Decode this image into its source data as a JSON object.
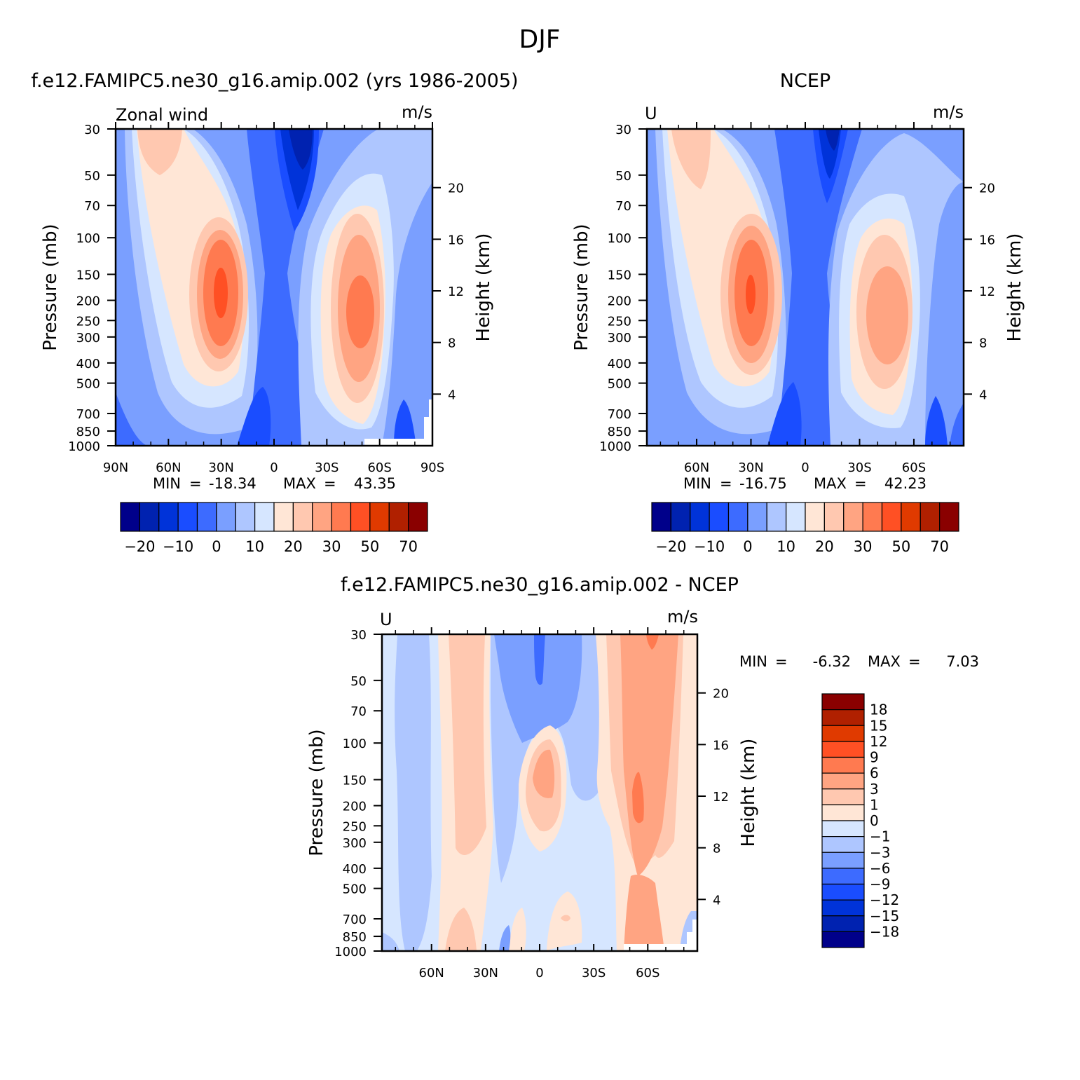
{
  "figure": {
    "title": "DJF"
  },
  "chart_data": [
    {
      "type": "heatmap",
      "panel": "model",
      "title": "f.e12.FAMIPC5.ne30_g16.amip.002 (yrs 1986-2005)",
      "left_label": "Zonal wind",
      "units": "m/s",
      "ylabel": "Pressure (mb)",
      "y2label": "Height (km)",
      "x_ticks": [
        "90N",
        "60N",
        "30N",
        "0",
        "30S",
        "60S",
        "90S"
      ],
      "y_ticks": [
        "30",
        "50",
        "70",
        "100",
        "150",
        "200",
        "250",
        "300",
        "400",
        "500",
        "700",
        "850",
        "1000"
      ],
      "y2_ticks": [
        "20",
        "16",
        "12",
        "8",
        "4"
      ],
      "min_label": "MIN",
      "min_value": "-18.34",
      "max_label": "MAX",
      "max_value": "43.35",
      "colorbar_labels": [
        "-20",
        "-10",
        "0",
        "10",
        "20",
        "30",
        "50",
        "70"
      ],
      "jets": [
        {
          "lat": 30,
          "p": 180,
          "max": 43.35
        },
        {
          "lat": -50,
          "p": 200,
          "max": 38
        }
      ],
      "min_region": {
        "lat": -15,
        "p": 40,
        "min": -18.34
      }
    },
    {
      "type": "heatmap",
      "panel": "obs",
      "title": "NCEP",
      "left_label": "U",
      "units": "m/s",
      "ylabel": "Pressure (mb)",
      "y2label": "Height (km)",
      "x_ticks": [
        "60N",
        "30N",
        "0",
        "30S",
        "60S"
      ],
      "y_ticks": [
        "30",
        "50",
        "70",
        "100",
        "150",
        "200",
        "250",
        "300",
        "400",
        "500",
        "700",
        "850",
        "1000"
      ],
      "y2_ticks": [
        "20",
        "16",
        "12",
        "8",
        "4"
      ],
      "min_label": "MIN",
      "min_value": "-16.75",
      "max_label": "MAX",
      "max_value": "42.23",
      "colorbar_labels": [
        "-20",
        "-10",
        "0",
        "10",
        "20",
        "30",
        "50",
        "70"
      ],
      "jets": [
        {
          "lat": 30,
          "p": 190,
          "max": 42.23
        },
        {
          "lat": -45,
          "p": 220,
          "max": 30
        }
      ],
      "min_region": {
        "lat": -15,
        "p": 35,
        "min": -16.75
      }
    },
    {
      "type": "heatmap",
      "panel": "difference",
      "title": "f.e12.FAMIPC5.ne30_g16.amip.002 - NCEP",
      "left_label": "U",
      "units": "m/s",
      "ylabel": "Pressure (mb)",
      "y2label": "Height (km)",
      "x_ticks": [
        "60N",
        "30N",
        "0",
        "30S",
        "60S"
      ],
      "y_ticks": [
        "30",
        "50",
        "70",
        "100",
        "150",
        "200",
        "250",
        "300",
        "400",
        "500",
        "700",
        "850",
        "1000"
      ],
      "y2_ticks": [
        "20",
        "16",
        "12",
        "8",
        "4"
      ],
      "min_label": "MIN",
      "min_value": "-6.32",
      "max_label": "MAX",
      "max_value": "7.03",
      "colorbar_labels": [
        "18",
        "15",
        "12",
        "9",
        "6",
        "3",
        "1",
        "0",
        "-1",
        "-3",
        "-6",
        "-9",
        "-12",
        "-15",
        "-18"
      ]
    }
  ],
  "colormap": {
    "main": [
      "#00008a",
      "#0022b0",
      "#0033d9",
      "#1a4dff",
      "#3d6bff",
      "#7a9fff",
      "#aec6ff",
      "#d6e6ff",
      "#ffe6d6",
      "#ffc8b0",
      "#ffa482",
      "#ff7a50",
      "#ff5024",
      "#e03a00",
      "#b02000",
      "#8a0000"
    ],
    "diff": [
      "#8a0000",
      "#b02000",
      "#e03a00",
      "#ff5024",
      "#ffa482",
      "#ffc8b0",
      "#ffe6d6",
      "#d6e6ff",
      "#aec6ff",
      "#7a9fff",
      "#3d6bff",
      "#1a4dff",
      "#0033d9",
      "#0022b0",
      "#00008a"
    ]
  }
}
